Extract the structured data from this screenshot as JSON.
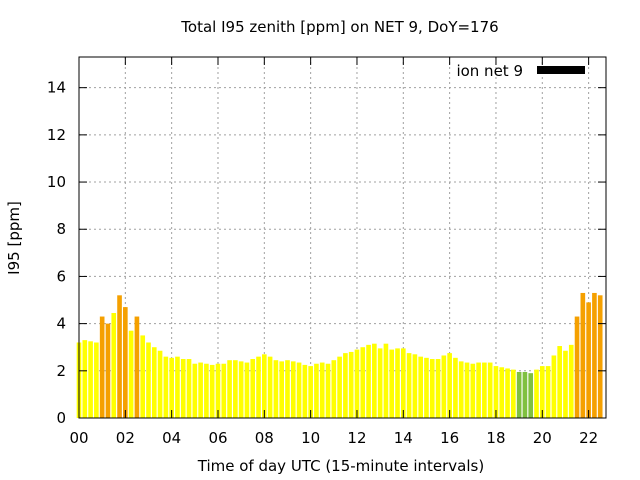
{
  "chart_data": {
    "type": "bar",
    "title": "Total I95 zenith [ppm] on NET 9, DoY=176",
    "xlabel": "Time of day UTC (15-minute intervals)",
    "ylabel": "I95 [ppm]",
    "ylim": [
      0,
      15.3
    ],
    "yticks": [
      0,
      2,
      4,
      6,
      8,
      10,
      12,
      14
    ],
    "ytick_labels": [
      "0",
      "2",
      "4",
      "6",
      "8",
      "10",
      "12",
      "14"
    ],
    "xlim": [
      0,
      22.75
    ],
    "xticks": [
      0,
      2,
      4,
      6,
      8,
      10,
      12,
      14,
      16,
      18,
      20,
      22
    ],
    "xtick_labels": [
      "00",
      "02",
      "04",
      "06",
      "08",
      "10",
      "12",
      "14",
      "16",
      "18",
      "20",
      "22"
    ],
    "bar_width_hours": 0.2,
    "grid": true,
    "legend_position": "top-right",
    "series": [
      {
        "name": "ion net 9",
        "legend_color": "#000000",
        "x_start_hour": 0,
        "interval_hours": 0.25,
        "values": [
          3.2,
          3.3,
          3.25,
          3.2,
          4.3,
          4.0,
          4.45,
          5.2,
          4.7,
          3.7,
          4.3,
          3.5,
          3.2,
          3.0,
          2.85,
          2.6,
          2.55,
          2.6,
          2.5,
          2.5,
          2.3,
          2.35,
          2.3,
          2.25,
          2.3,
          2.3,
          2.45,
          2.45,
          2.4,
          2.35,
          2.5,
          2.6,
          2.7,
          2.6,
          2.45,
          2.4,
          2.45,
          2.4,
          2.35,
          2.25,
          2.2,
          2.3,
          2.35,
          2.3,
          2.45,
          2.6,
          2.75,
          2.8,
          2.9,
          3.0,
          3.1,
          3.15,
          2.95,
          3.15,
          2.9,
          2.95,
          2.95,
          2.75,
          2.7,
          2.6,
          2.55,
          2.5,
          2.5,
          2.65,
          2.75,
          2.55,
          2.4,
          2.35,
          2.3,
          2.35,
          2.35,
          2.35,
          2.2,
          2.15,
          2.1,
          2.05,
          1.95,
          1.95,
          1.9,
          2.05,
          2.2,
          2.2,
          2.65,
          3.05,
          2.85,
          3.1,
          4.3,
          5.3,
          4.9,
          5.3,
          5.2
        ],
        "colors": [
          "#ffff00",
          "#ffff00",
          "#ffff00",
          "#ffff00",
          "#f5a000",
          "#f5a000",
          "#ffff00",
          "#f5a000",
          "#f5a000",
          "#ffff00",
          "#f5a000",
          "#ffff00",
          "#ffff00",
          "#ffff00",
          "#ffff00",
          "#ffff00",
          "#ffff00",
          "#ffff00",
          "#ffff00",
          "#ffff00",
          "#ffff00",
          "#ffff00",
          "#ffff00",
          "#ffff00",
          "#ffff00",
          "#ffff00",
          "#ffff00",
          "#ffff00",
          "#ffff00",
          "#ffff00",
          "#ffff00",
          "#ffff00",
          "#ffff00",
          "#ffff00",
          "#ffff00",
          "#ffff00",
          "#ffff00",
          "#ffff00",
          "#ffff00",
          "#ffff00",
          "#ffff00",
          "#ffff00",
          "#ffff00",
          "#ffff00",
          "#ffff00",
          "#ffff00",
          "#ffff00",
          "#ffff00",
          "#ffff00",
          "#ffff00",
          "#ffff00",
          "#ffff00",
          "#ffff00",
          "#ffff00",
          "#ffff00",
          "#ffff00",
          "#ffff00",
          "#ffff00",
          "#ffff00",
          "#ffff00",
          "#ffff00",
          "#ffff00",
          "#ffff00",
          "#ffff00",
          "#ffff00",
          "#ffff00",
          "#ffff00",
          "#ffff00",
          "#ffff00",
          "#ffff00",
          "#ffff00",
          "#ffff00",
          "#ffff00",
          "#ffff00",
          "#ffff00",
          "#ffff00",
          "#80c040",
          "#80c040",
          "#80c040",
          "#ffff00",
          "#ffff00",
          "#ffff00",
          "#ffff00",
          "#ffff00",
          "#ffff00",
          "#ffff00",
          "#f5a000",
          "#f5a000",
          "#f5a000",
          "#f5a000",
          "#f5a000"
        ]
      }
    ]
  }
}
